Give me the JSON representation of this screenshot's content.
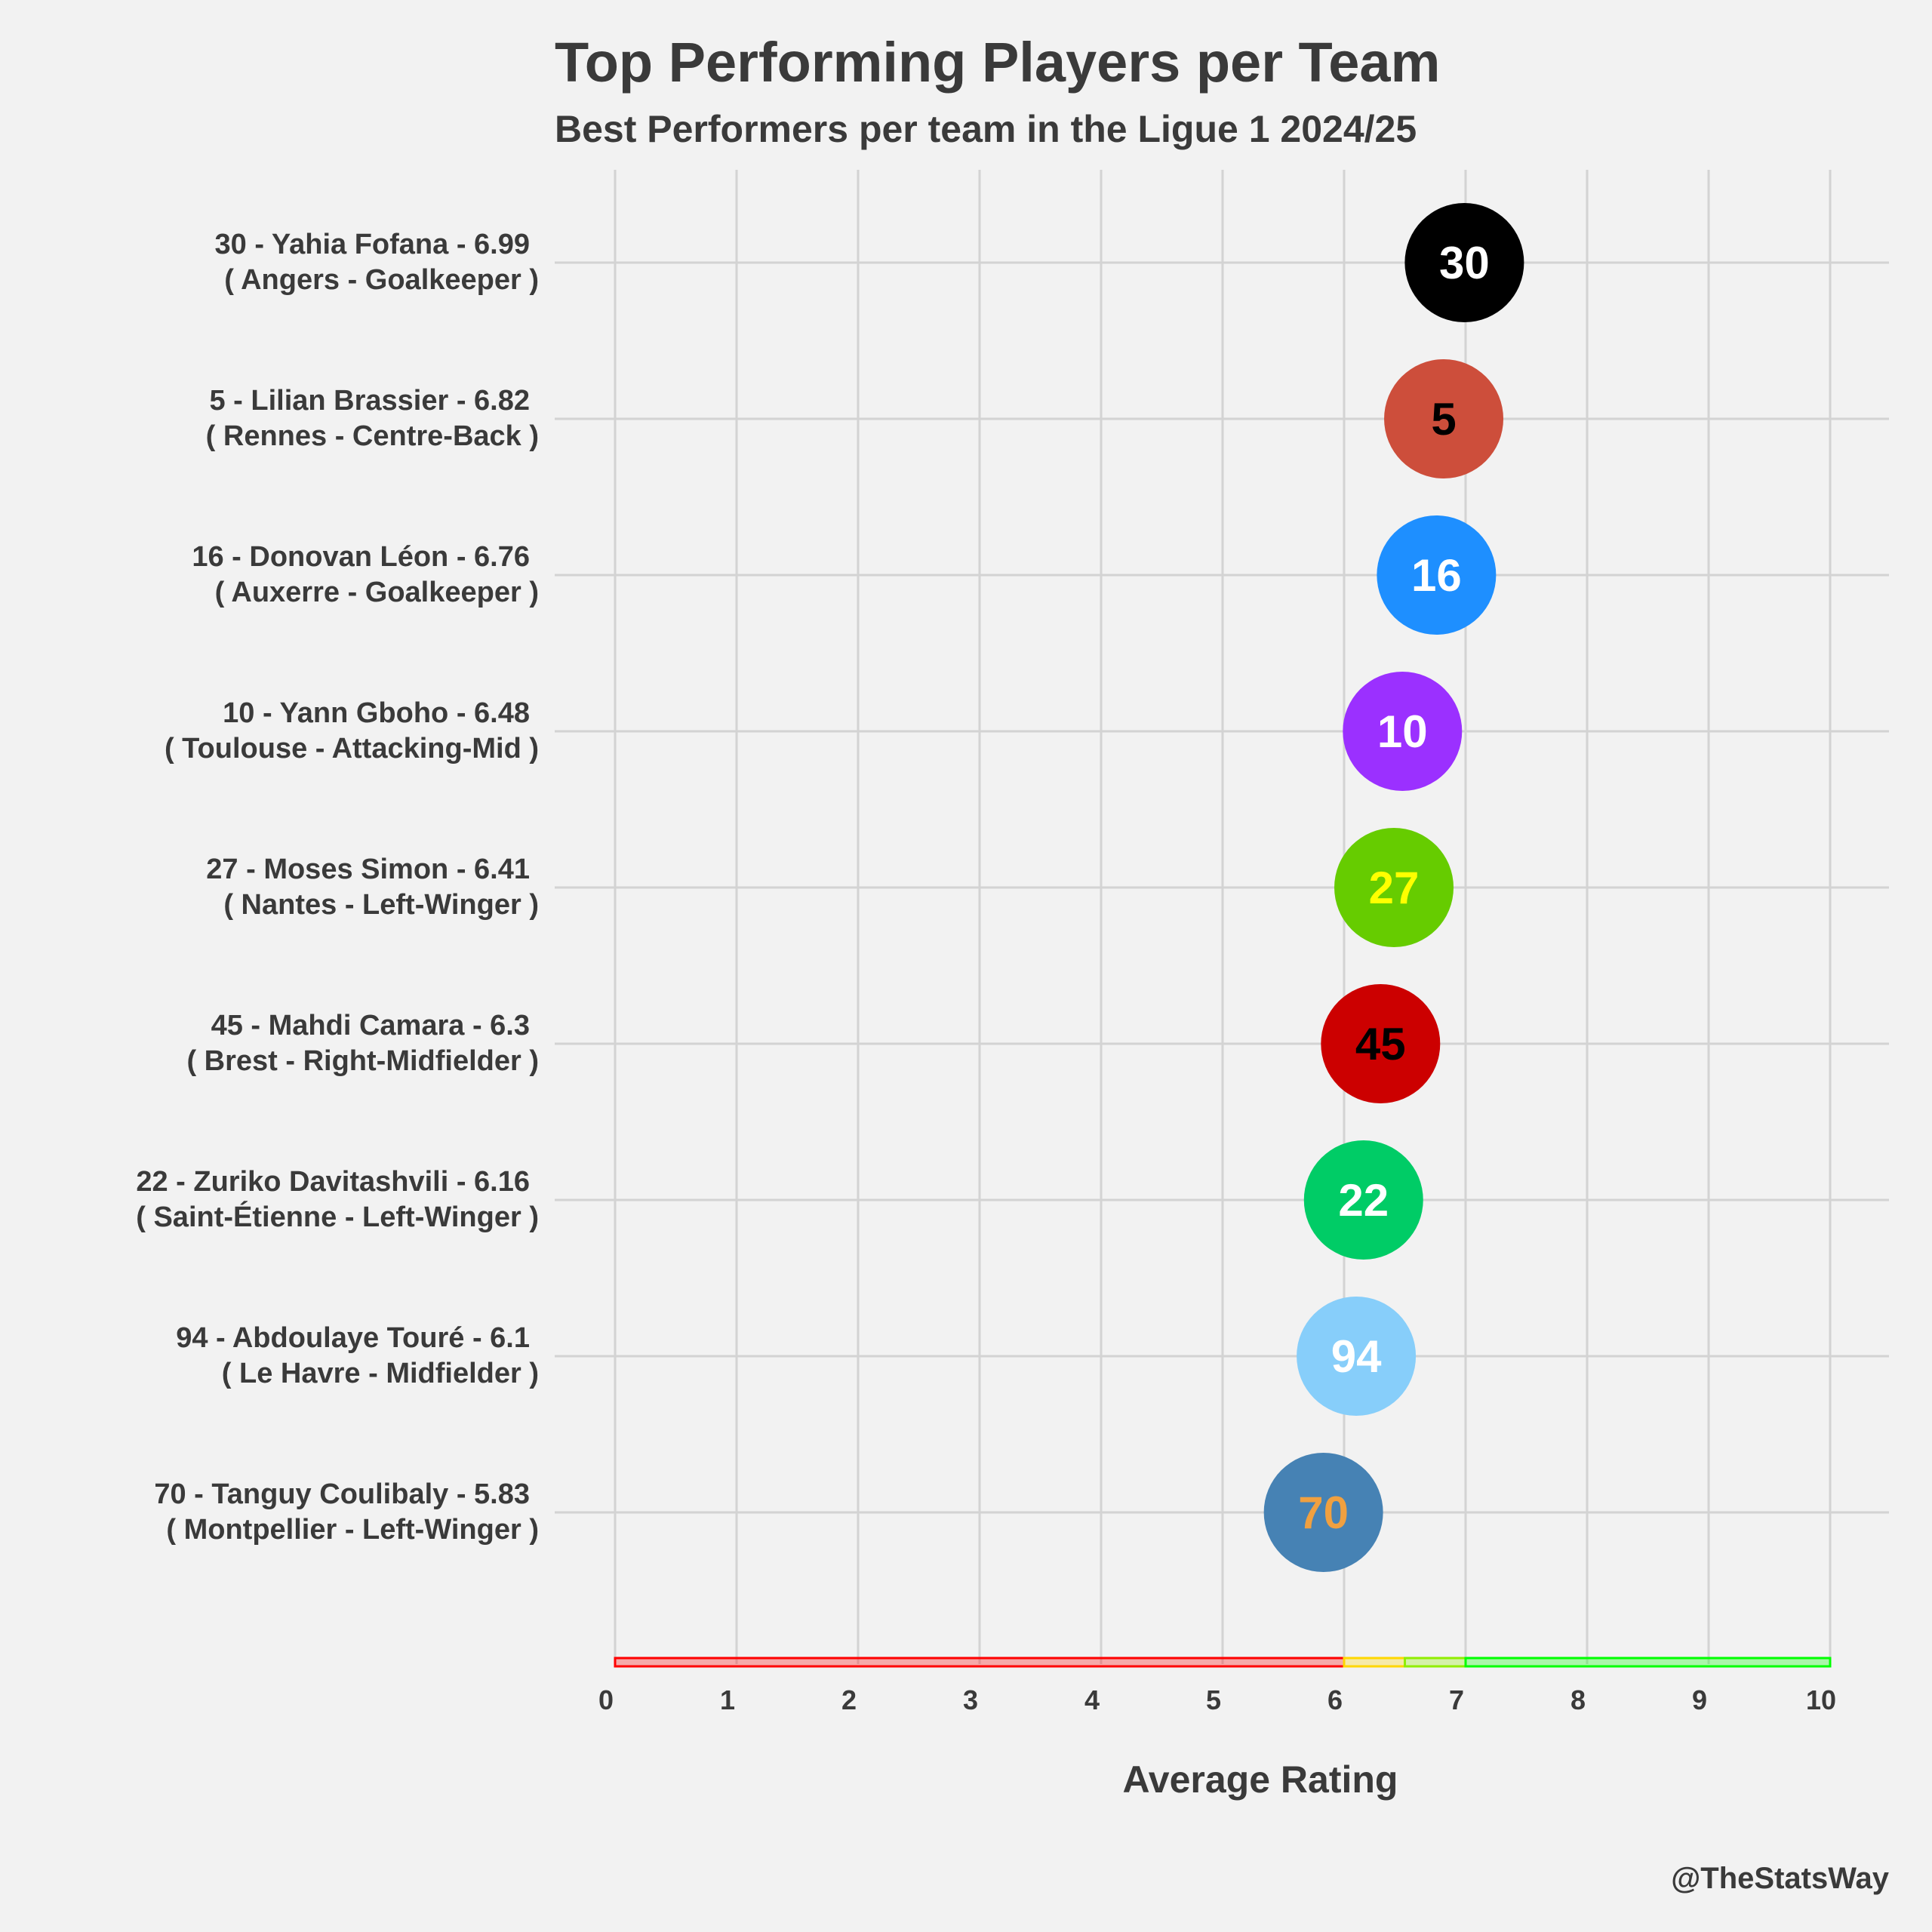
{
  "chart_data": {
    "type": "scatter",
    "title": "Top Performing Players per Team",
    "subtitle": "Best Performers per team in the Ligue 1 2024/25",
    "xlabel": "Average Rating",
    "ylabel": "",
    "xlim": [
      0,
      10
    ],
    "x_ticks": [
      "0",
      "1",
      "2",
      "3",
      "4",
      "5",
      "6",
      "7",
      "8",
      "9",
      "10"
    ],
    "grid": true,
    "credit": "@TheStatsWay",
    "rating_bands": [
      {
        "from": 0,
        "to": 6.0,
        "color": "#ff0000"
      },
      {
        "from": 6.0,
        "to": 6.5,
        "color": "#ffd700"
      },
      {
        "from": 6.5,
        "to": 7.0,
        "color": "#90ee00"
      },
      {
        "from": 7.0,
        "to": 10.0,
        "color": "#00ff00"
      }
    ],
    "players": [
      {
        "number": "30",
        "name_line": "30 - Yahia Fofana - 6.99",
        "detail_line": "( Angers - Goalkeeper )",
        "rating": 6.99,
        "color": "#000000",
        "text_color": "#ffffff"
      },
      {
        "number": "5",
        "name_line": "5 - Lilian Brassier - 6.82",
        "detail_line": "( Rennes - Centre-Back )",
        "rating": 6.82,
        "color": "#cd4e3b",
        "text_color": "#000000"
      },
      {
        "number": "16",
        "name_line": "16 - Donovan Léon - 6.76",
        "detail_line": "( Auxerre - Goalkeeper )",
        "rating": 6.76,
        "color": "#1e8fff",
        "text_color": "#ffffff"
      },
      {
        "number": "10",
        "name_line": "10 - Yann Gboho - 6.48",
        "detail_line": "( Toulouse - Attacking-Mid )",
        "rating": 6.48,
        "color": "#9b30ff",
        "text_color": "#ffffff"
      },
      {
        "number": "27",
        "name_line": "27 - Moses Simon - 6.41",
        "detail_line": "( Nantes - Left-Winger )",
        "rating": 6.41,
        "color": "#66cc00",
        "text_color": "#ffff00"
      },
      {
        "number": "45",
        "name_line": "45 - Mahdi Camara - 6.3",
        "detail_line": "( Brest - Right-Midfielder )",
        "rating": 6.3,
        "color": "#cc0000",
        "text_color": "#000000"
      },
      {
        "number": "22",
        "name_line": "22 - Zuriko Davitashvili - 6.16",
        "detail_line": "( Saint-Étienne - Left-Winger )",
        "rating": 6.16,
        "color": "#00cc66",
        "text_color": "#ffffff"
      },
      {
        "number": "94",
        "name_line": "94 - Abdoulaye Touré - 6.1",
        "detail_line": "( Le Havre - Midfielder )",
        "rating": 6.1,
        "color": "#87cefa",
        "text_color": "#ffffff"
      },
      {
        "number": "70",
        "name_line": "70 - Tanguy Coulibaly - 5.83",
        "detail_line": "( Montpellier - Left-Winger )",
        "rating": 5.83,
        "color": "#4682b4",
        "text_color": "#f0a040"
      }
    ]
  }
}
